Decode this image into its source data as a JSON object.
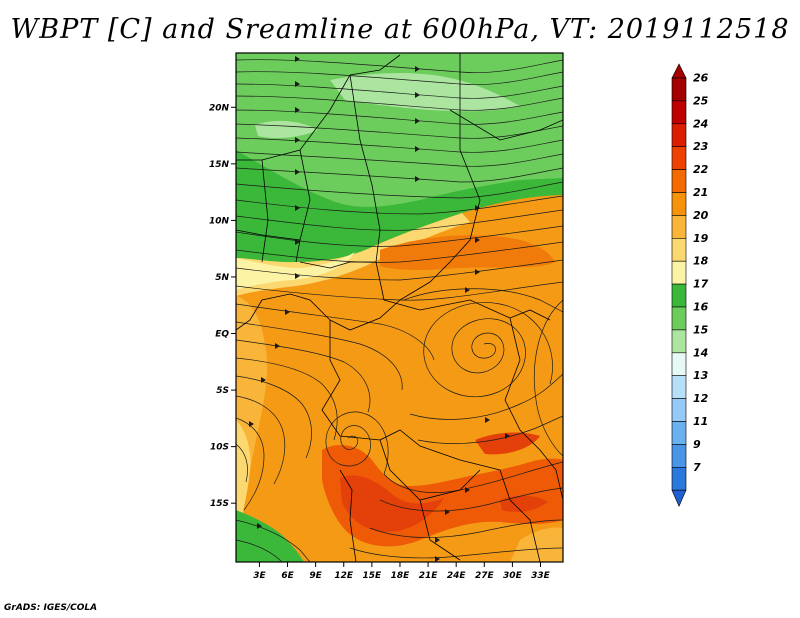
{
  "title": "WBPT [C] and Sreamline at 600hPa, VT: 2019112518",
  "credit": "GrADS: IGES/COLA",
  "map": {
    "lat_ticks": [
      {
        "label": "20N",
        "value": 20
      },
      {
        "label": "15N",
        "value": 15
      },
      {
        "label": "10N",
        "value": 10
      },
      {
        "label": "5N",
        "value": 5
      },
      {
        "label": "EQ",
        "value": 0
      },
      {
        "label": "5S",
        "value": -5
      },
      {
        "label": "10S",
        "value": -10
      },
      {
        "label": "15S",
        "value": -15
      }
    ],
    "lon_ticks": [
      {
        "label": "3E",
        "value": 3
      },
      {
        "label": "6E",
        "value": 6
      },
      {
        "label": "9E",
        "value": 9
      },
      {
        "label": "12E",
        "value": 12
      },
      {
        "label": "15E",
        "value": 15
      },
      {
        "label": "18E",
        "value": 18
      },
      {
        "label": "21E",
        "value": 21
      },
      {
        "label": "24E",
        "value": 24
      },
      {
        "label": "27E",
        "value": 27
      },
      {
        "label": "30E",
        "value": 30
      },
      {
        "label": "33E",
        "value": 33
      }
    ]
  },
  "legend": {
    "levels": [
      {
        "label": "26",
        "color": "#a50000"
      },
      {
        "label": "25",
        "color": "#c00000"
      },
      {
        "label": "24",
        "color": "#dc1e00"
      },
      {
        "label": "23",
        "color": "#ee4100"
      },
      {
        "label": "22",
        "color": "#f36a00"
      },
      {
        "label": "21",
        "color": "#f7930a"
      },
      {
        "label": "20",
        "color": "#f9b43a"
      },
      {
        "label": "19",
        "color": "#fcd970"
      },
      {
        "label": "18",
        "color": "#fdf3a5"
      },
      {
        "label": "17",
        "color": "#3bb739"
      },
      {
        "label": "16",
        "color": "#6ccd5c"
      },
      {
        "label": "15",
        "color": "#ace5a0"
      },
      {
        "label": "14",
        "color": "#e6f9f6"
      },
      {
        "label": "13",
        "color": "#b7dff9"
      },
      {
        "label": "12",
        "color": "#95caf6"
      },
      {
        "label": "11",
        "color": "#6bb1ef"
      },
      {
        "label": "9",
        "color": "#4b95e6"
      },
      {
        "label": "7",
        "color": "#2a78dc"
      }
    ],
    "low_color": "#1f5fd2"
  }
}
